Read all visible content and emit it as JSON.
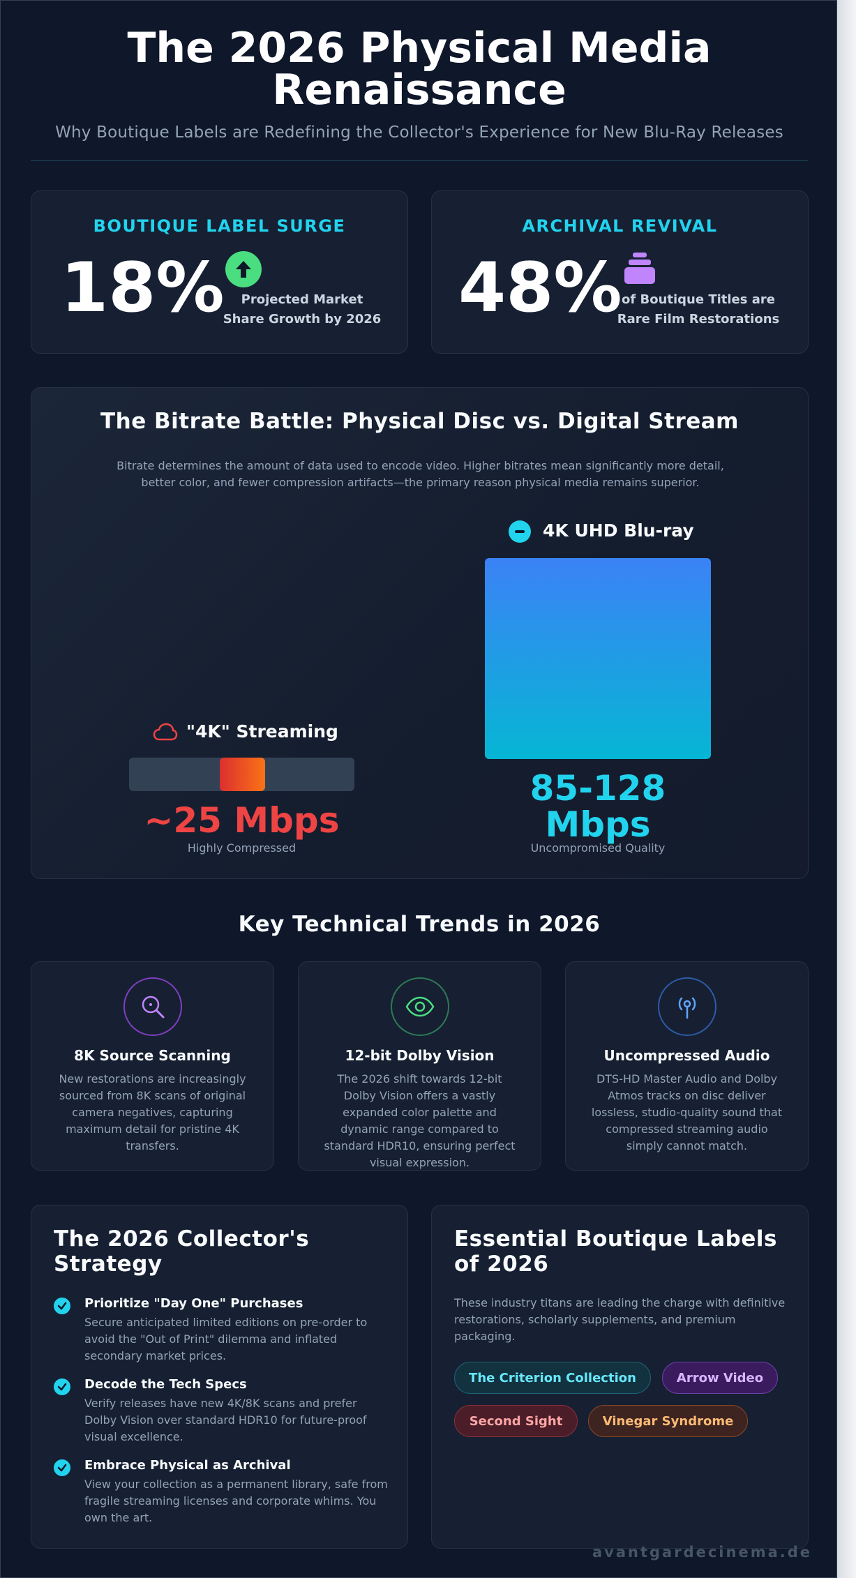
{
  "header": {
    "title_line1": "The 2026 Physical Media",
    "title_line2": "Renaissance",
    "subtitle": "Why Boutique Labels are Redefining the Collector's Experience for New Blu-Ray Releases"
  },
  "stats": [
    {
      "label": "BOUTIQUE LABEL SURGE",
      "value": "18%",
      "desc_line1": "Projected Market",
      "desc_line2": "Share Growth by 2026",
      "icon": "arrow-up-circle-icon",
      "color": "#22d3ee",
      "icon_color": "#4ade80"
    },
    {
      "label": "ARCHIVAL REVIVAL",
      "value": "48%",
      "desc_line1": "of Boutique Titles are",
      "desc_line2": "Rare Film Restorations",
      "icon": "archive-stack-icon",
      "color": "#22d3ee",
      "icon_color": "#c084fc"
    }
  ],
  "bitrate": {
    "title": "The Bitrate Battle: Physical Disc vs. Digital Stream",
    "description": "Bitrate determines the amount of data used to encode video. Higher bitrates mean significantly more detail, better color, and fewer compression artifacts—the primary reason physical media remains superior.",
    "streaming": {
      "label": "\"4K\" Streaming",
      "value": "~25 Mbps",
      "caption": "Highly Compressed",
      "icon": "cloud-icon",
      "color": "#ef4444"
    },
    "disc": {
      "label": "4K UHD Blu-ray",
      "value_line1": "85-128",
      "value_line2": "Mbps",
      "caption": "Uncompromised Quality",
      "icon": "disc-icon",
      "color": "#22d3ee"
    }
  },
  "trends": {
    "title": "Key Technical Trends in 2026",
    "items": [
      {
        "title": "8K Source Scanning",
        "desc": "New restorations are increasingly sourced from 8K scans of original camera negatives, capturing maximum detail for pristine 4K transfers.",
        "icon": "magnifier-icon",
        "color": "#a855f7"
      },
      {
        "title": "12-bit Dolby Vision",
        "desc": "The 2026 shift towards 12-bit Dolby Vision offers a vastly expanded color palette and dynamic range compared to standard HDR10, ensuring perfect visual expression.",
        "icon": "eye-icon",
        "color": "#4ade80"
      },
      {
        "title": "Uncompressed Audio",
        "desc": "DTS-HD Master Audio and Dolby Atmos tracks on disc deliver lossless, studio-quality sound that compressed streaming audio simply cannot match.",
        "icon": "broadcast-icon",
        "color": "#60a5fa"
      }
    ]
  },
  "strategy": {
    "title_line1": "The 2026 Collector's",
    "title_line2": "Strategy",
    "items": [
      {
        "title": "Prioritize \"Day One\" Purchases",
        "desc": "Secure anticipated limited editions on pre-order to avoid the \"Out of Print\" dilemma and inflated secondary market prices."
      },
      {
        "title": "Decode the Tech Specs",
        "desc": "Verify releases have new 4K/8K scans and prefer Dolby Vision over standard HDR10 for future-proof visual excellence."
      },
      {
        "title": "Embrace Physical as Archival",
        "desc": "View your collection as a permanent library, safe from fragile streaming licenses and corporate whims. You own the art."
      }
    ]
  },
  "labels": {
    "title_line1": "Essential Boutique Labels",
    "title_line2": "of 2026",
    "desc": "These industry titans are leading the charge with definitive restorations, scholarly supplements, and premium packaging.",
    "pills": [
      {
        "name": "The Criterion Collection",
        "color": "#67e8f9",
        "bg": "#123240",
        "border": "#1e6275"
      },
      {
        "name": "Arrow Video",
        "color": "#d8b4fe",
        "bg": "#3a1c5e",
        "border": "#6d3fa8"
      },
      {
        "name": "Second Sight",
        "color": "#fca5a5",
        "bg": "#4a1d28",
        "border": "#8a2f3a"
      },
      {
        "name": "Vinegar Syndrome",
        "color": "#fdba74",
        "bg": "#3d2420",
        "border": "#8a4526"
      }
    ]
  },
  "footer": {
    "domain": "avantgardecinema.de"
  }
}
